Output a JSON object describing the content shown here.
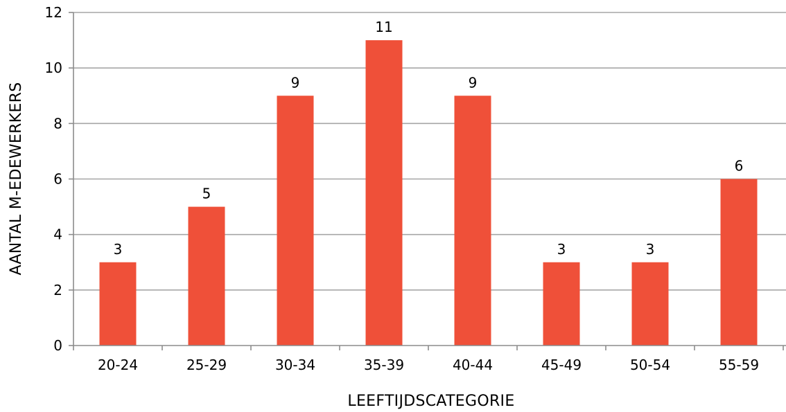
{
  "chart_data": {
    "type": "bar",
    "categories": [
      "20-24",
      "25-29",
      "30-34",
      "35-39",
      "40-44",
      "45-49",
      "50-54",
      "55-59"
    ],
    "values": [
      3,
      5,
      9,
      11,
      9,
      3,
      3,
      6
    ],
    "xlabel": "LEEFTIJDSCATEGORIE",
    "ylabel": "AANTAL M-EDEWERKERS",
    "ylim": [
      0,
      12
    ],
    "yticks": [
      0,
      2,
      4,
      6,
      8,
      10,
      12
    ],
    "grid": true,
    "legend": "none",
    "bar_color": "#ef5039",
    "data_labels": true
  }
}
